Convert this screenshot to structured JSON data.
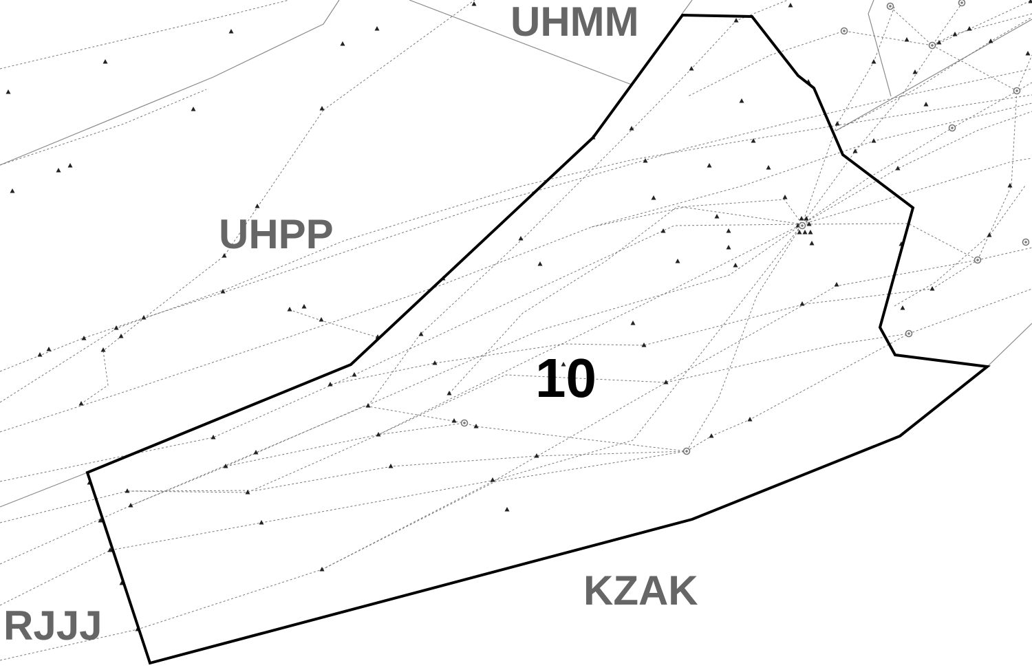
{
  "fir_labels": {
    "uhmm": "UHMM",
    "uhpp": "UHPP",
    "rjjj": "RJJJ",
    "kzak": "KZAK"
  },
  "sector": {
    "label": "10"
  },
  "colors": {
    "background": "#ffffff",
    "sector_outline": "#000000",
    "fir_label": "#666666",
    "route": "#777777",
    "waypoint": "#222222"
  },
  "symbols": {
    "waypoint": "triangle-icon",
    "navaid": "circle-navaid-icon"
  }
}
